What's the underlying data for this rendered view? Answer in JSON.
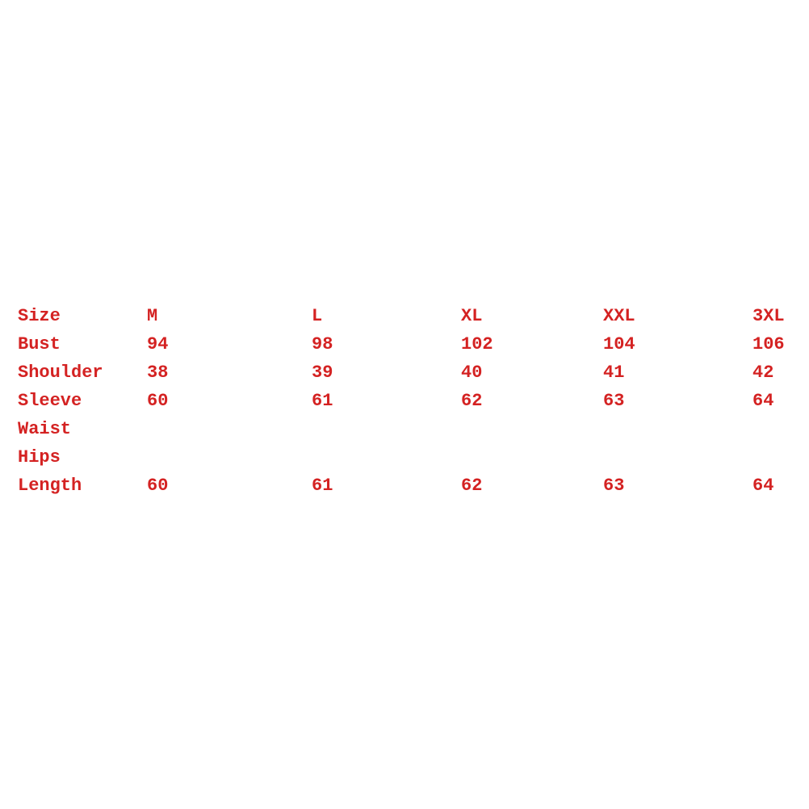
{
  "text_color": "#d42222",
  "table": {
    "rows": [
      [
        "Size",
        "M",
        "L",
        "XL",
        "XXL",
        "3XL"
      ],
      [
        "Bust",
        "94",
        "98",
        "102",
        "104",
        "106"
      ],
      [
        "Shoulder",
        "38",
        "39",
        "40",
        "41",
        "42"
      ],
      [
        "Sleeve",
        "60",
        "61",
        "62",
        "63",
        "64"
      ],
      [
        "Waist",
        "",
        "",
        "",
        "",
        ""
      ],
      [
        "Hips",
        "",
        "",
        "",
        "",
        ""
      ],
      [
        "Length",
        "60",
        "61",
        "62",
        "63",
        "64"
      ]
    ]
  }
}
